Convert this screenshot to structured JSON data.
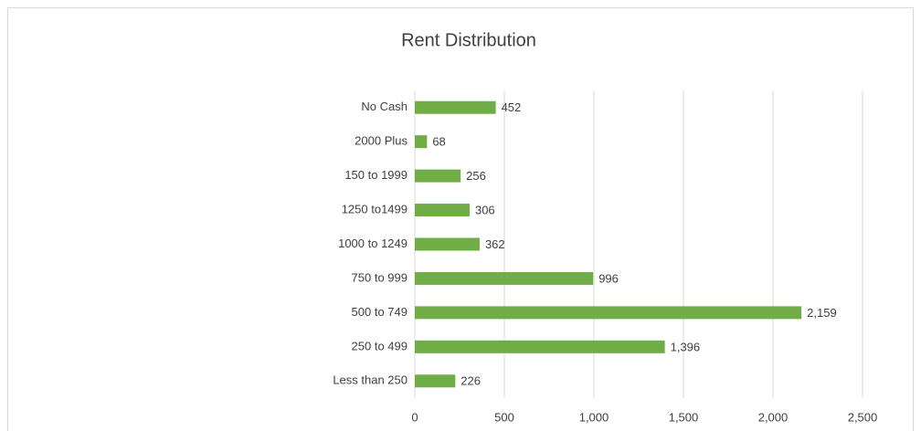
{
  "chart_data": {
    "type": "barh",
    "title": "Rent Distribution",
    "categories": [
      "No Cash",
      "2000 Plus",
      "150 to 1999",
      "1250 to1499",
      "1000 to 1249",
      "750 to 999",
      "500 to 749",
      "250 to 499",
      "Less than 250"
    ],
    "values": [
      452,
      68,
      256,
      306,
      362,
      996,
      2159,
      1396,
      226
    ],
    "value_labels": [
      "452",
      "68",
      "256",
      "306",
      "362",
      "996",
      "2,159",
      "1,396",
      "226"
    ],
    "color": "#70ad47",
    "xlim": [
      0,
      2500
    ],
    "xticks": [
      0,
      500,
      {
        "value": 1000,
        "label": "1,000"
      },
      {
        "value": 1500,
        "label": "1,500"
      },
      {
        "value": 2000,
        "label": "2,000"
      },
      {
        "value": 2500,
        "label": "2,500"
      }
    ],
    "grid": true
  }
}
